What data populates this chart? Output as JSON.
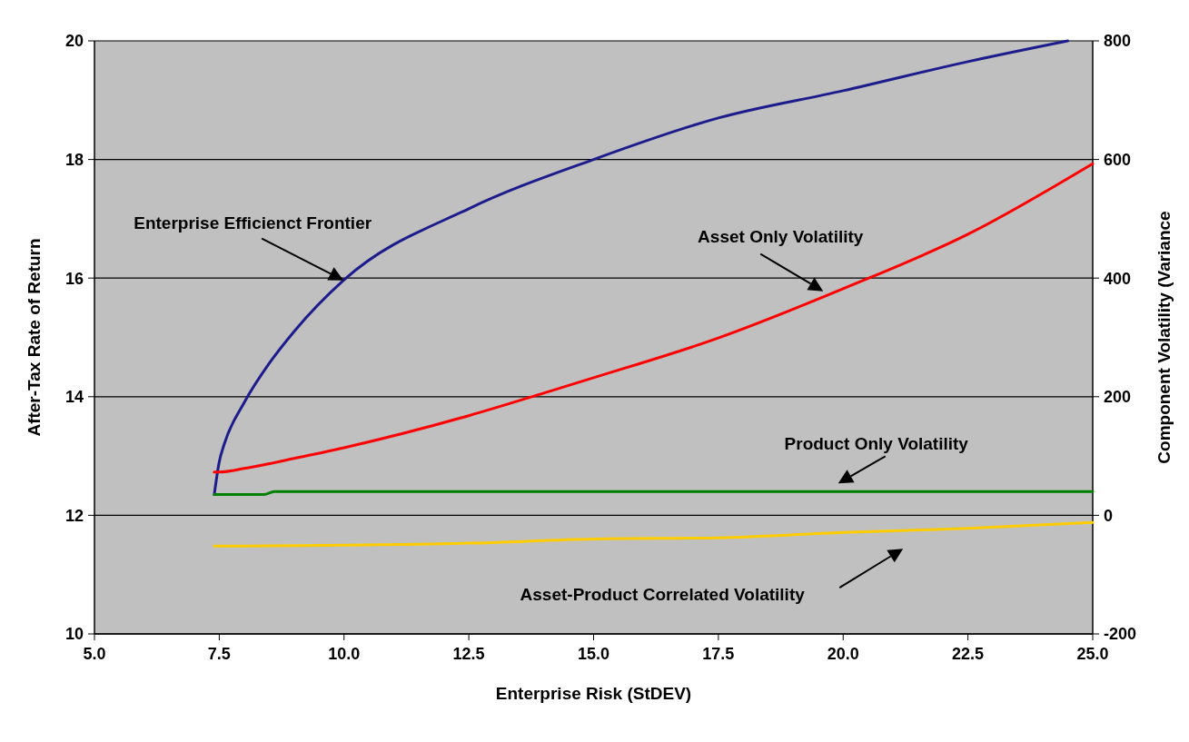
{
  "chart_data": {
    "type": "line",
    "xlabel": "Enterprise Risk (StDEV)",
    "ylabel": "After-Tax Rate of Return",
    "y2label": "Component Volatility (Variance",
    "xlim": [
      5,
      25
    ],
    "xticks": [
      {
        "value": 5,
        "label": "5.0"
      },
      {
        "value": 7.5,
        "label": "7.5"
      },
      {
        "value": 10,
        "label": "10.0"
      },
      {
        "value": 12.5,
        "label": "12.5"
      },
      {
        "value": 15,
        "label": "15.0"
      },
      {
        "value": 17.5,
        "label": "17.5"
      },
      {
        "value": 20,
        "label": "20.0"
      },
      {
        "value": 22.5,
        "label": "22.5"
      },
      {
        "value": 25,
        "label": "25.0"
      }
    ],
    "ylim": [
      10,
      20
    ],
    "yticks": [
      10,
      12,
      14,
      16,
      18,
      20
    ],
    "y2lim": [
      -200,
      800
    ],
    "y2ticks": [
      -200,
      0,
      200,
      400,
      600,
      800
    ],
    "grid": "y",
    "line_style": "solid",
    "series": [
      {
        "name": "Enterprise Efficienct Frontier",
        "color": "#1c1c8c",
        "x": [
          7.4,
          7.5,
          7.6,
          8.0,
          8.5,
          9.0,
          10.0,
          12.5,
          15.0,
          17.5,
          20.0,
          22.5,
          24.5
        ],
        "values": [
          12.35,
          12.9,
          13.2,
          13.9,
          14.56,
          15.1,
          15.97,
          17.17,
          18.0,
          18.7,
          19.16,
          19.65,
          20.0
        ]
      },
      {
        "name": "Asset Only Volatility",
        "color": "#ff0000",
        "axis": "y2",
        "x": [
          7.4,
          7.5,
          8.0,
          9.0,
          10.0,
          12.5,
          14.0,
          15.0,
          17.5,
          20.0,
          22.5,
          25.0
        ],
        "values": [
          73,
          73,
          79,
          96,
          114,
          168,
          206,
          232,
          299,
          382,
          474,
          593
        ]
      },
      {
        "name": "Product Only Volatility",
        "color": "#008000",
        "axis": "y2",
        "x": [
          7.4,
          8.4,
          8.6,
          25.0
        ],
        "values": [
          35,
          35,
          40,
          40
        ]
      },
      {
        "name": "Asset-Product Correlated Volatility",
        "color": "#ffcc00",
        "axis": "y2",
        "x": [
          7.4,
          12.5,
          15.0,
          17.5,
          20.0,
          22.5,
          25.0
        ],
        "values": [
          -52,
          -47,
          -40,
          -38,
          -29,
          -22,
          -12
        ]
      }
    ]
  }
}
